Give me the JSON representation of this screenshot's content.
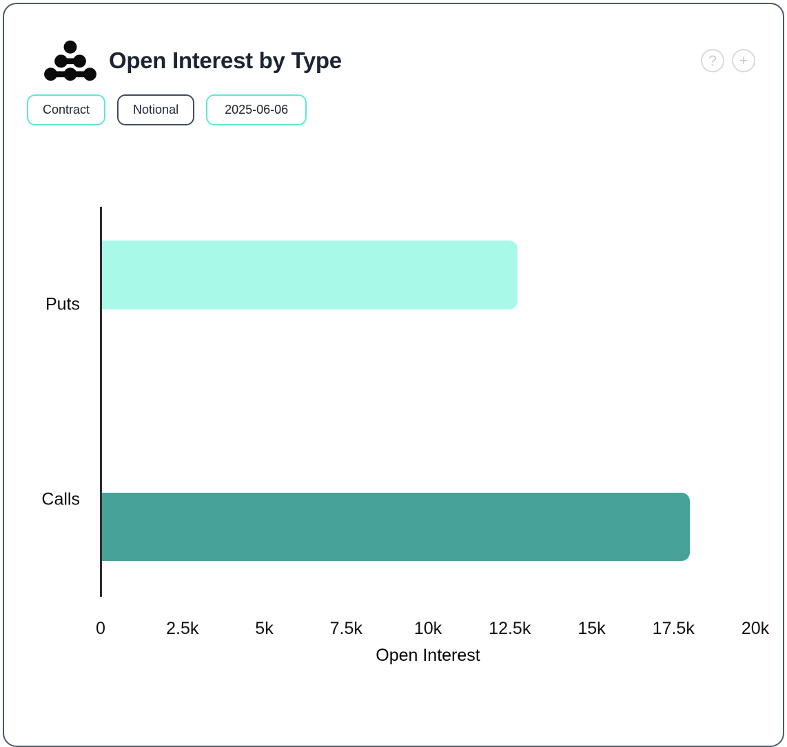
{
  "header": {
    "title": "Open Interest by Type",
    "logo_name": "amberdata-logo",
    "help_glyph": "?",
    "add_glyph": "+"
  },
  "toolbar": {
    "buttons": [
      {
        "label": "Contract",
        "variant": "teal"
      },
      {
        "label": "Notional",
        "variant": "dark"
      },
      {
        "label": "2025-06-06",
        "variant": "teal"
      }
    ]
  },
  "chart_data": {
    "type": "bar",
    "orientation": "horizontal",
    "title": "Open Interest by Type",
    "categories": [
      "Puts",
      "Calls"
    ],
    "values": [
      12700,
      17950
    ],
    "bar_colors": [
      "#a9f9e9",
      "#47a29a"
    ],
    "xlabel": "Open Interest",
    "ylabel": "",
    "xlim": [
      0,
      20000
    ],
    "x_ticks": [
      "0",
      "2.5k",
      "5k",
      "7.5k",
      "10k",
      "12.5k",
      "15k",
      "17.5k",
      "20k"
    ],
    "grid": false,
    "legend": false,
    "date": "2025-06-06"
  },
  "colors": {
    "accent_teal": "#5ce9d4",
    "dark_navy": "#1c2433",
    "bar_puts": "#a9f9e9",
    "bar_calls": "#47a29a",
    "axis_line": "#2d2d2d"
  }
}
